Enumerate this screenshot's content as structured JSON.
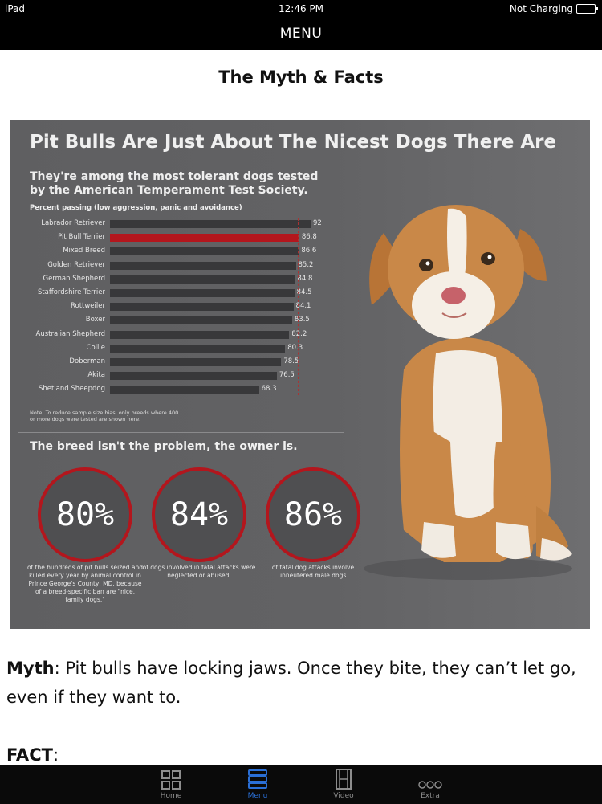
{
  "status_bar": {
    "device": "iPad",
    "time": "12:46 PM",
    "charging": "Not Charging"
  },
  "nav": {
    "title": "MENU"
  },
  "page": {
    "title": "The Myth & Facts"
  },
  "infographic": {
    "title": "Pit Bulls Are Just About The Nicest Dogs There Are",
    "subtitle_line1": "They're among the most tolerant dogs tested",
    "subtitle_line2": "by the American Temperament Test Society.",
    "caption": "Percent passing (low aggression, panic and avoidance)",
    "note_line1": "Note: To reduce sample size bias, only breeds where 400",
    "note_line2": "or more dogs were tested are shown here.",
    "breed_statement": "The breed isn't the problem, the owner is.",
    "stats": [
      {
        "value": "80%",
        "desc": "of the hundreds of pit bulls seized and killed every year by animal control in Prince George's County, MD, because of a breed-specific ban are \"nice, family dogs.\""
      },
      {
        "value": "84%",
        "desc": "of dogs involved in fatal attacks were neglected or abused."
      },
      {
        "value": "86%",
        "desc": "of fatal dog attacks involve unneutered male dogs."
      }
    ]
  },
  "chart_data": {
    "type": "bar",
    "orientation": "horizontal",
    "title": "Percent passing (low aggression, panic and avoidance)",
    "categories": [
      "Labrador Retriever",
      "Pit Bull Terrier",
      "Mixed Breed",
      "Golden Retriever",
      "German Shepherd",
      "Staffordshire Terrier",
      "Rottweiler",
      "Boxer",
      "Australian Shepherd",
      "Collie",
      "Doberman",
      "Akita",
      "Shetland Sheepdog"
    ],
    "values": [
      92,
      86.8,
      86.6,
      85.2,
      84.8,
      84.5,
      84.1,
      83.5,
      82.2,
      80.3,
      78.5,
      76.5,
      68.3
    ],
    "value_labels": [
      "92",
      "86.8",
      "86.6",
      "85.2",
      "84.8",
      "84.5",
      "84.1",
      "83.5",
      "82.2",
      "80.3",
      "78.5",
      "76.5",
      "68.3"
    ],
    "highlight": "Pit Bull Terrier",
    "highlight_color": "#b3161d",
    "bar_color": "#38383a",
    "xlim": [
      0,
      92
    ]
  },
  "article": {
    "myth_label": "Myth",
    "myth_text": ":  Pit bulls have locking jaws.  Once they bite, they can’t let go, even if they want to.",
    "fact_label": "FACT",
    "fact_text": ":"
  },
  "tabbar": {
    "tabs": [
      {
        "label": "Home",
        "icon": "grid-icon"
      },
      {
        "label": "Menu",
        "icon": "list-icon"
      },
      {
        "label": "Video",
        "icon": "film-icon"
      },
      {
        "label": "Extra",
        "icon": "more-icon"
      }
    ],
    "active_color": "#2a6fd6"
  }
}
